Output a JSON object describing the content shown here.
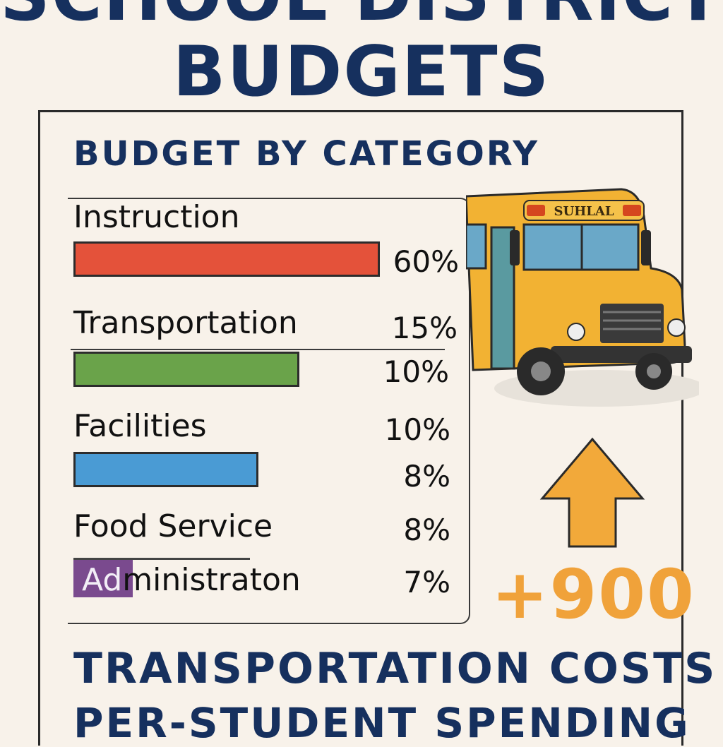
{
  "header": {
    "title_line1": "SCHOOL DISTRICT",
    "title_line2": "BUDGETS"
  },
  "panel": {
    "subtitle": "BUDGET BY CATEGORY",
    "categories": [
      {
        "label": "Instruction",
        "percent_label": "60%",
        "bar_color": "#e4523a",
        "bar_fill": 0.6
      },
      {
        "label": "Transportation",
        "percent_label": "15%"
      },
      {
        "extra_percent_label": "10%",
        "bar_color": "#6aa34a",
        "bar_fill": 0.1
      },
      {
        "label": "Facilities",
        "percent_label": "10%"
      },
      {
        "extra_percent_label": "8%",
        "bar_color": "#4a9bd4",
        "bar_fill": 0.08
      },
      {
        "label": "Food Service",
        "percent_label": "8%"
      },
      {
        "label": "Administraton",
        "swatch_text": "Ad",
        "percent_label": "7%",
        "swatch_color": "#7a4a8e"
      }
    ]
  },
  "bus": {
    "sign_text": "SUHLAL",
    "color": "#f2b233"
  },
  "highlight": {
    "arrow_color": "#f2a93a",
    "value": "+900",
    "value_color": "#f0a23a"
  },
  "footer": {
    "line1": "TRANSPORTATION COSTS",
    "line2": "PER-STUDENT SPENDING"
  }
}
